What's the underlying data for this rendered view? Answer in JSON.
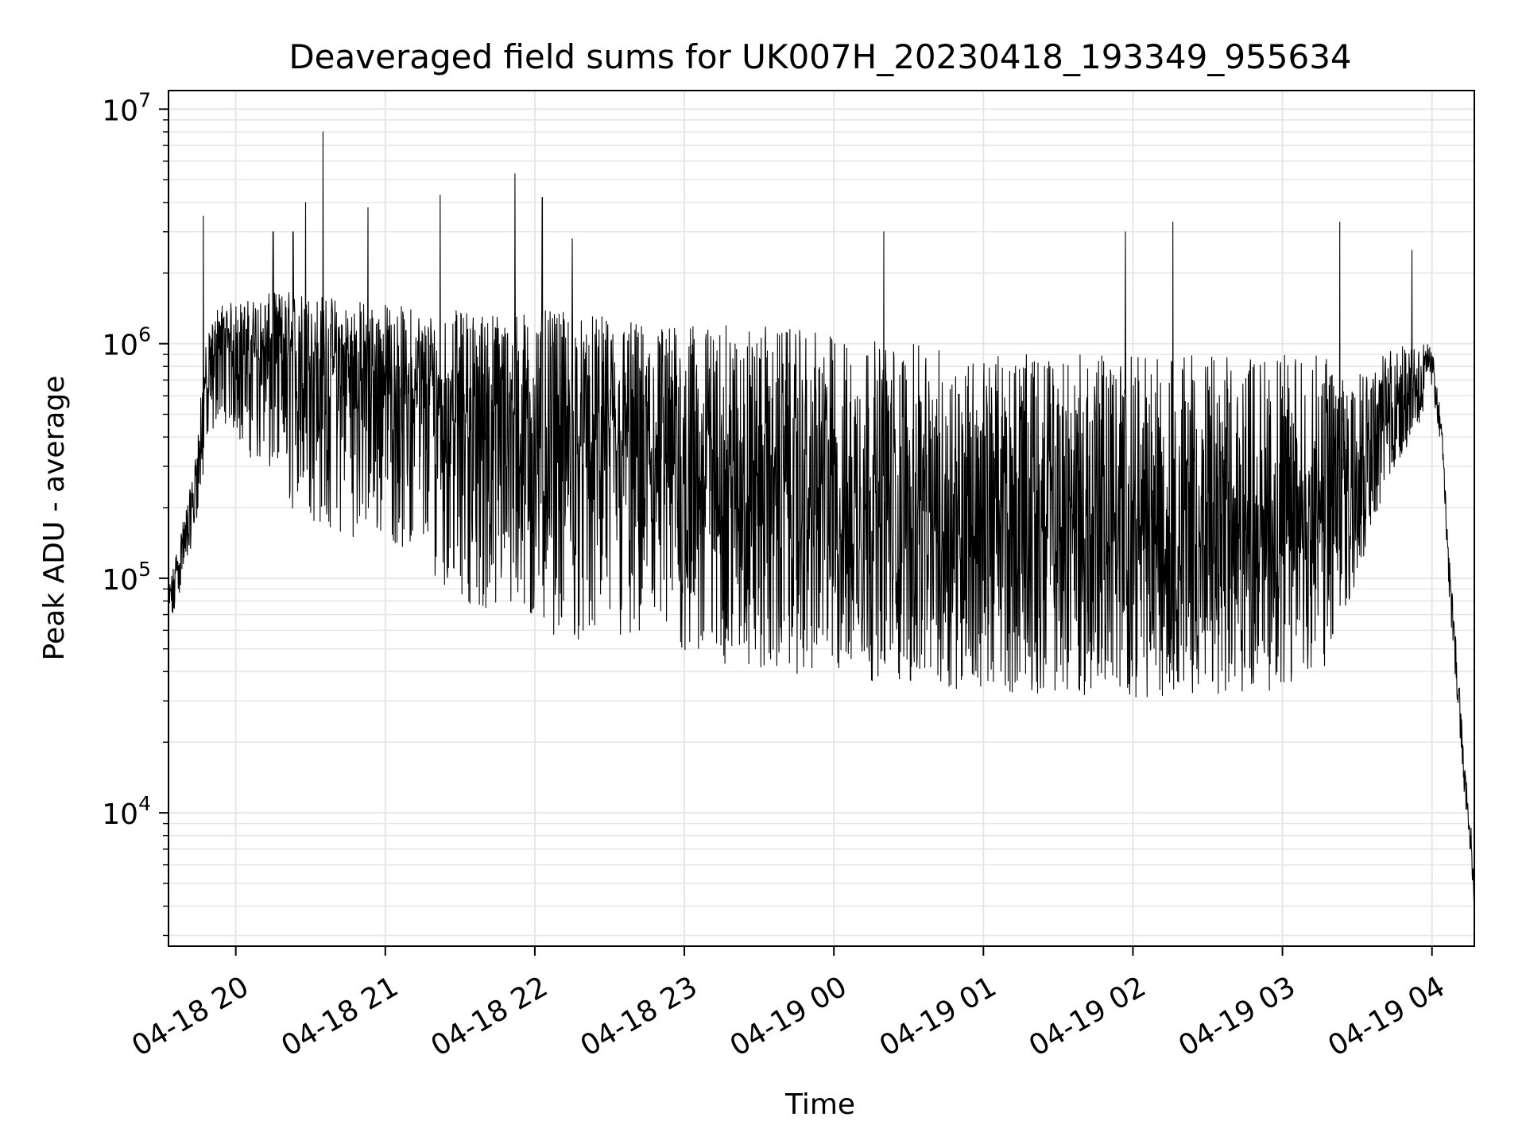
{
  "chart_data": {
    "type": "line",
    "title": "Deaveraged field sums for UK007H_20230418_193349_955634",
    "xlabel": "Time",
    "ylabel": "Peak ADU - average",
    "yscale": "log",
    "ylim": [
      2700,
      12000000
    ],
    "xlim": [
      "04-18 19:33",
      "04-19 04:17"
    ],
    "grid": true,
    "line_color": "#000000",
    "grid_color": "#e6e6e6",
    "x_ticks": [
      {
        "value": "04-18 20:00",
        "label": "04-18 20"
      },
      {
        "value": "04-18 21:00",
        "label": "04-18 21"
      },
      {
        "value": "04-18 22:00",
        "label": "04-18 22"
      },
      {
        "value": "04-18 23:00",
        "label": "04-18 23"
      },
      {
        "value": "04-19 00:00",
        "label": "04-19 00"
      },
      {
        "value": "04-19 01:00",
        "label": "04-19 01"
      },
      {
        "value": "04-19 02:00",
        "label": "04-19 02"
      },
      {
        "value": "04-19 03:00",
        "label": "04-19 03"
      },
      {
        "value": "04-19 04:00",
        "label": "04-19 04"
      }
    ],
    "y_ticks": [
      {
        "value": 10000,
        "base": "10",
        "exp": "4"
      },
      {
        "value": 100000,
        "base": "10",
        "exp": "5"
      },
      {
        "value": 1000000,
        "base": "10",
        "exp": "6"
      },
      {
        "value": 10000000,
        "base": "10",
        "exp": "7"
      }
    ],
    "series": [
      {
        "profile": [
          [
            "04-18 19:33",
            50000,
            80000,
            90000
          ],
          [
            "04-18 19:38",
            90000,
            120000,
            160000
          ],
          [
            "04-18 19:43",
            150000,
            200000,
            280000
          ],
          [
            "04-18 19:48",
            300000,
            600000,
            1000000
          ],
          [
            "04-18 19:53",
            500000,
            900000,
            1500000
          ],
          [
            "04-18 20:00",
            400000,
            900000,
            1500000
          ],
          [
            "04-18 20:20",
            200000,
            800000,
            1700000
          ],
          [
            "04-18 20:40",
            150000,
            700000,
            1600000
          ],
          [
            "04-18 21:00",
            150000,
            600000,
            1500000
          ],
          [
            "04-18 21:20",
            100000,
            500000,
            1400000
          ],
          [
            "04-18 21:40",
            70000,
            400000,
            1400000
          ],
          [
            "04-18 22:00",
            60000,
            350000,
            1400000
          ],
          [
            "04-18 22:30",
            50000,
            300000,
            1300000
          ],
          [
            "04-18 23:00",
            45000,
            250000,
            1200000
          ],
          [
            "04-18 23:30",
            40000,
            200000,
            1200000
          ],
          [
            "04-19 00:00",
            38000,
            170000,
            1100000
          ],
          [
            "04-19 00:30",
            35000,
            150000,
            1000000
          ],
          [
            "04-19 01:00",
            33000,
            140000,
            900000
          ],
          [
            "04-19 01:30",
            32000,
            130000,
            900000
          ],
          [
            "04-19 02:00",
            31000,
            120000,
            900000
          ],
          [
            "04-19 02:30",
            32000,
            120000,
            900000
          ],
          [
            "04-19 03:00",
            33000,
            130000,
            900000
          ],
          [
            "04-19 03:20",
            40000,
            180000,
            900000
          ],
          [
            "04-19 03:30",
            100000,
            300000,
            800000
          ],
          [
            "04-19 03:40",
            200000,
            450000,
            900000
          ],
          [
            "04-19 03:50",
            350000,
            600000,
            1000000
          ],
          [
            "04-19 04:00",
            600000,
            800000,
            1000000
          ],
          [
            "04-19 04:04",
            350000,
            400000,
            450000
          ],
          [
            "04-19 04:07",
            80000,
            100000,
            120000
          ],
          [
            "04-19 04:10",
            30000,
            40000,
            50000
          ],
          [
            "04-19 04:13",
            12000,
            15000,
            18000
          ],
          [
            "04-19 04:16",
            5000,
            6500,
            8000
          ],
          [
            "04-19 04:17",
            4000,
            4500,
            5000
          ]
        ],
        "spikes": [
          [
            "04-18 19:47",
            3500000
          ],
          [
            "04-18 20:15",
            3000000
          ],
          [
            "04-18 20:23",
            3000000
          ],
          [
            "04-18 20:28",
            4000000
          ],
          [
            "04-18 20:35",
            8000000
          ],
          [
            "04-18 20:53",
            3800000
          ],
          [
            "04-18 21:22",
            4300000
          ],
          [
            "04-18 21:52",
            5300000
          ],
          [
            "04-18 22:03",
            4200000
          ],
          [
            "04-18 22:15",
            2800000
          ],
          [
            "04-19 00:20",
            3000000
          ],
          [
            "04-19 01:57",
            3000000
          ],
          [
            "04-19 02:16",
            3300000
          ],
          [
            "04-19 03:23",
            3300000
          ],
          [
            "04-19 03:52",
            2500000
          ]
        ]
      }
    ]
  }
}
